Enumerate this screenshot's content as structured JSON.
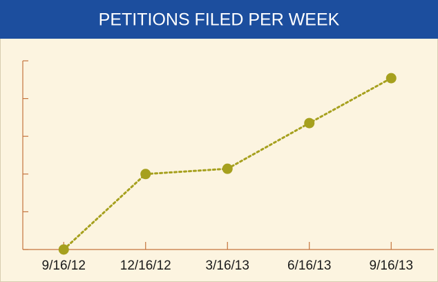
{
  "chart_data": {
    "type": "line",
    "title": "PETITIONS FILED PER WEEK",
    "categories": [
      "9/16/12",
      "12/16/12",
      "3/16/13",
      "6/16/13",
      "9/16/13"
    ],
    "values": [
      0,
      2.0,
      2.14,
      3.35,
      4.54
    ],
    "color": "#a6a01e",
    "ylim": [
      0,
      5
    ],
    "yticks": [
      0,
      1,
      2,
      3,
      4,
      5
    ]
  }
}
